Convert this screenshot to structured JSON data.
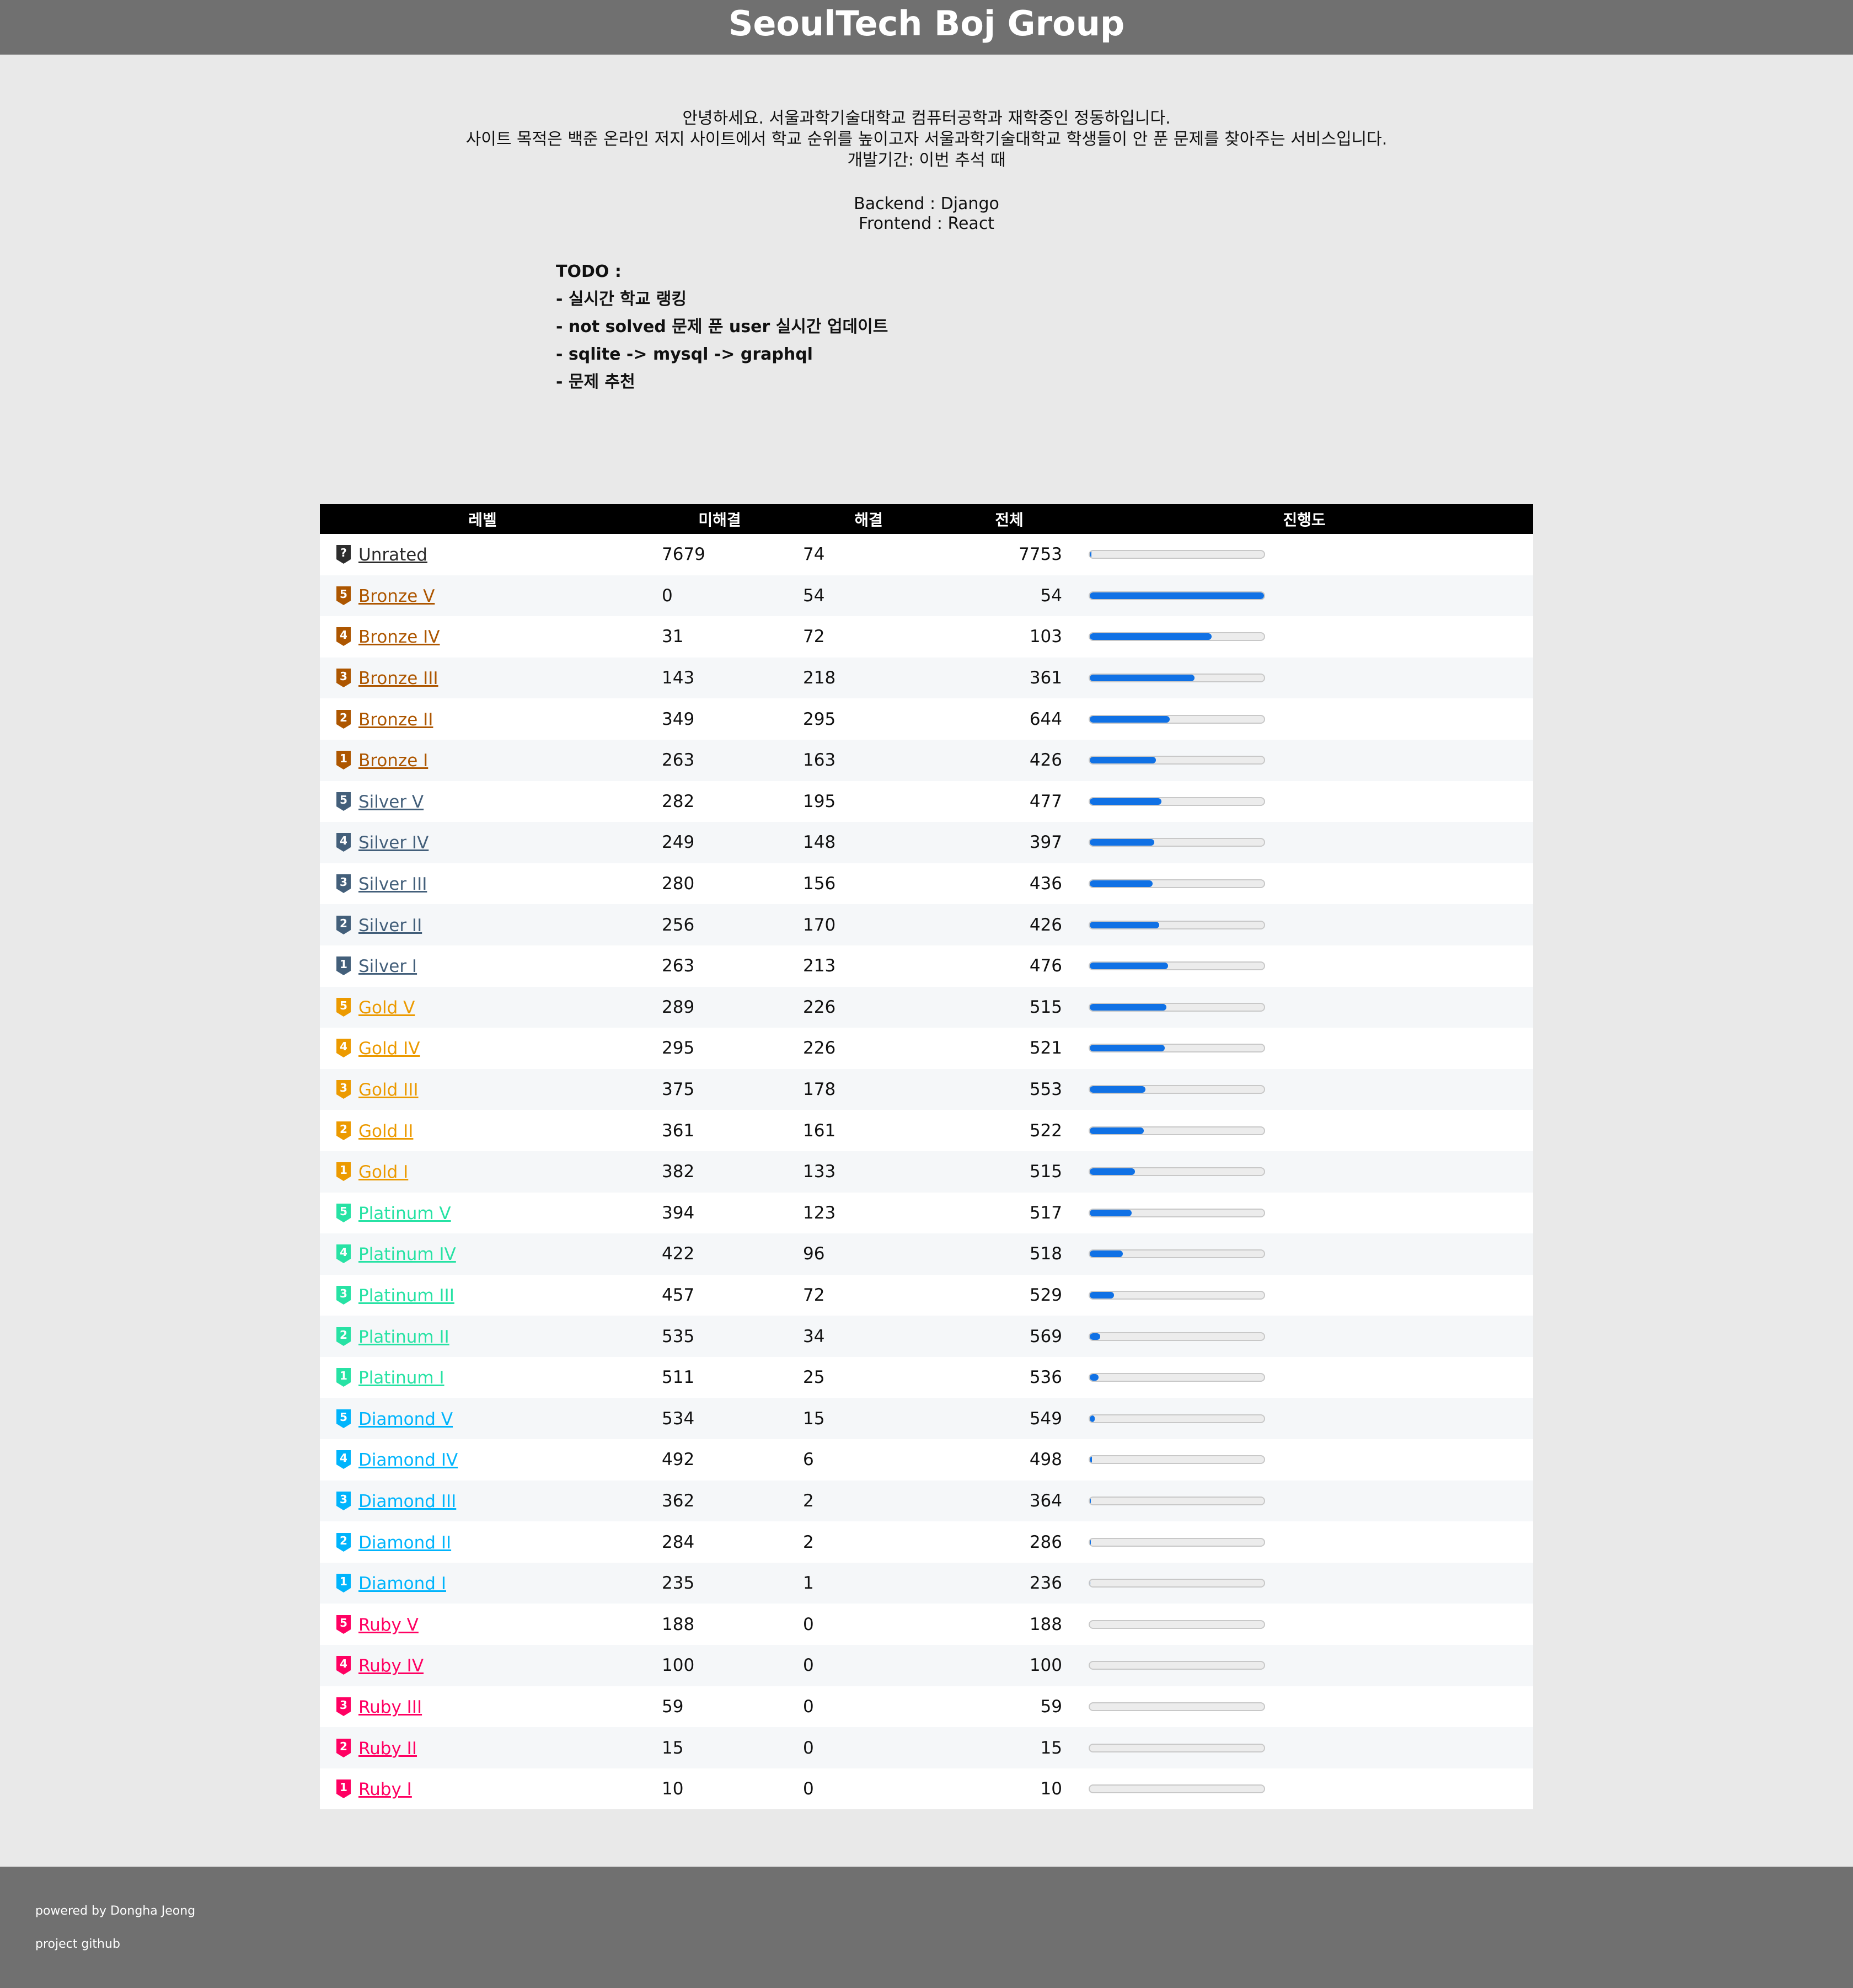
{
  "header": {
    "title": "SeoulTech Boj Group"
  },
  "intro": {
    "lines": [
      "안녕하세요. 서울과학기술대학교 컴퓨터공학과 재학중인 정동하입니다.",
      "사이트 목적은 백준 온라인 저지 사이트에서 학교 순위를 높이고자 서울과학기술대학교 학생들이 안 푼 문제를 찾아주는 서비스입니다.",
      "개발기간: 이번 추석 때"
    ],
    "backend": "Backend : Django",
    "frontend": "Frontend : React"
  },
  "todo": {
    "title": "TODO :",
    "items": [
      "- 실시간 학교 랭킹",
      "- not solved 문제 푼 user 실시간 업데이트",
      "- sqlite -> mysql -> graphql",
      "- 문제 추천"
    ]
  },
  "table": {
    "headers": {
      "level": "레벨",
      "unsolved": "미해결",
      "solved": "해결",
      "total": "전체",
      "progress": "진행도"
    },
    "rows": [
      {
        "tier": "unrated",
        "badge": "?",
        "level": "Unrated",
        "unsolved": "7679",
        "solved": "74",
        "total": "7753",
        "progress": 0.01
      },
      {
        "tier": "bronze",
        "badge": "5",
        "level": "Bronze V",
        "unsolved": "0",
        "solved": "54",
        "total": "54",
        "progress": 1.0
      },
      {
        "tier": "bronze",
        "badge": "4",
        "level": "Bronze IV",
        "unsolved": "31",
        "solved": "72",
        "total": "103",
        "progress": 0.7
      },
      {
        "tier": "bronze",
        "badge": "3",
        "level": "Bronze III",
        "unsolved": "143",
        "solved": "218",
        "total": "361",
        "progress": 0.6
      },
      {
        "tier": "bronze",
        "badge": "2",
        "level": "Bronze II",
        "unsolved": "349",
        "solved": "295",
        "total": "644",
        "progress": 0.46
      },
      {
        "tier": "bronze",
        "badge": "1",
        "level": "Bronze I",
        "unsolved": "263",
        "solved": "163",
        "total": "426",
        "progress": 0.38
      },
      {
        "tier": "silver",
        "badge": "5",
        "level": "Silver V",
        "unsolved": "282",
        "solved": "195",
        "total": "477",
        "progress": 0.41
      },
      {
        "tier": "silver",
        "badge": "4",
        "level": "Silver IV",
        "unsolved": "249",
        "solved": "148",
        "total": "397",
        "progress": 0.37
      },
      {
        "tier": "silver",
        "badge": "3",
        "level": "Silver III",
        "unsolved": "280",
        "solved": "156",
        "total": "436",
        "progress": 0.36
      },
      {
        "tier": "silver",
        "badge": "2",
        "level": "Silver II",
        "unsolved": "256",
        "solved": "170",
        "total": "426",
        "progress": 0.4
      },
      {
        "tier": "silver",
        "badge": "1",
        "level": "Silver I",
        "unsolved": "263",
        "solved": "213",
        "total": "476",
        "progress": 0.45
      },
      {
        "tier": "gold",
        "badge": "5",
        "level": "Gold V",
        "unsolved": "289",
        "solved": "226",
        "total": "515",
        "progress": 0.44
      },
      {
        "tier": "gold",
        "badge": "4",
        "level": "Gold IV",
        "unsolved": "295",
        "solved": "226",
        "total": "521",
        "progress": 0.43
      },
      {
        "tier": "gold",
        "badge": "3",
        "level": "Gold III",
        "unsolved": "375",
        "solved": "178",
        "total": "553",
        "progress": 0.32
      },
      {
        "tier": "gold",
        "badge": "2",
        "level": "Gold II",
        "unsolved": "361",
        "solved": "161",
        "total": "522",
        "progress": 0.31
      },
      {
        "tier": "gold",
        "badge": "1",
        "level": "Gold I",
        "unsolved": "382",
        "solved": "133",
        "total": "515",
        "progress": 0.26
      },
      {
        "tier": "platinum",
        "badge": "5",
        "level": "Platinum V",
        "unsolved": "394",
        "solved": "123",
        "total": "517",
        "progress": 0.24
      },
      {
        "tier": "platinum",
        "badge": "4",
        "level": "Platinum IV",
        "unsolved": "422",
        "solved": "96",
        "total": "518",
        "progress": 0.19
      },
      {
        "tier": "platinum",
        "badge": "3",
        "level": "Platinum III",
        "unsolved": "457",
        "solved": "72",
        "total": "529",
        "progress": 0.14
      },
      {
        "tier": "platinum",
        "badge": "2",
        "level": "Platinum II",
        "unsolved": "535",
        "solved": "34",
        "total": "569",
        "progress": 0.06
      },
      {
        "tier": "platinum",
        "badge": "1",
        "level": "Platinum I",
        "unsolved": "511",
        "solved": "25",
        "total": "536",
        "progress": 0.05
      },
      {
        "tier": "diamond",
        "badge": "5",
        "level": "Diamond V",
        "unsolved": "534",
        "solved": "15",
        "total": "549",
        "progress": 0.03
      },
      {
        "tier": "diamond",
        "badge": "4",
        "level": "Diamond IV",
        "unsolved": "492",
        "solved": "6",
        "total": "498",
        "progress": 0.012
      },
      {
        "tier": "diamond",
        "badge": "3",
        "level": "Diamond III",
        "unsolved": "362",
        "solved": "2",
        "total": "364",
        "progress": 0.005
      },
      {
        "tier": "diamond",
        "badge": "2",
        "level": "Diamond II",
        "unsolved": "284",
        "solved": "2",
        "total": "286",
        "progress": 0.007
      },
      {
        "tier": "diamond",
        "badge": "1",
        "level": "Diamond I",
        "unsolved": "235",
        "solved": "1",
        "total": "236",
        "progress": 0.004
      },
      {
        "tier": "ruby",
        "badge": "5",
        "level": "Ruby V",
        "unsolved": "188",
        "solved": "0",
        "total": "188",
        "progress": 0
      },
      {
        "tier": "ruby",
        "badge": "4",
        "level": "Ruby IV",
        "unsolved": "100",
        "solved": "0",
        "total": "100",
        "progress": 0
      },
      {
        "tier": "ruby",
        "badge": "3",
        "level": "Ruby III",
        "unsolved": "59",
        "solved": "0",
        "total": "59",
        "progress": 0
      },
      {
        "tier": "ruby",
        "badge": "2",
        "level": "Ruby II",
        "unsolved": "15",
        "solved": "0",
        "total": "15",
        "progress": 0
      },
      {
        "tier": "ruby",
        "badge": "1",
        "level": "Ruby I",
        "unsolved": "10",
        "solved": "0",
        "total": "10",
        "progress": 0
      }
    ]
  },
  "tier_colors": {
    "unrated": "#2d2d2d",
    "bronze": "#ad5600",
    "silver": "#435f7a",
    "gold": "#ec9a00",
    "platinum": "#27e2a4",
    "diamond": "#00b4fc",
    "ruby": "#ff0062"
  },
  "progress_color": "#1071e5",
  "footer": {
    "powered_by": "powered by Dongha Jeong",
    "github": "project github"
  }
}
